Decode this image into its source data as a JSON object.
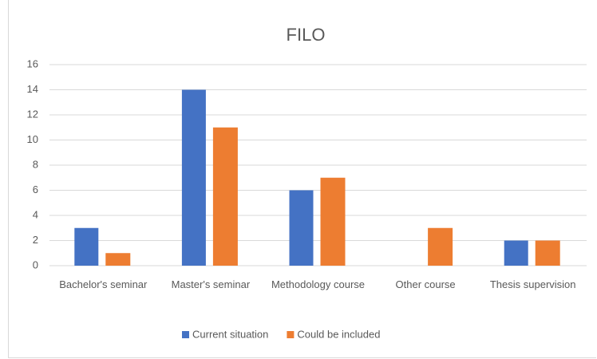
{
  "chart_data": {
    "type": "bar",
    "title": "FILO",
    "categories": [
      "Bachelor's seminar",
      "Master's seminar",
      "Methodology course",
      "Other course",
      "Thesis supervision"
    ],
    "series": [
      {
        "name": "Current situation",
        "color": "#4472c4",
        "values": [
          3,
          14,
          6,
          0,
          2
        ]
      },
      {
        "name": "Could be included",
        "color": "#ed7d31",
        "values": [
          1,
          11,
          7,
          3,
          2
        ]
      }
    ],
    "ylim": [
      0,
      16
    ],
    "yticks": [
      0,
      2,
      4,
      6,
      8,
      10,
      12,
      14,
      16
    ],
    "grid": true,
    "legend": "bottom"
  }
}
